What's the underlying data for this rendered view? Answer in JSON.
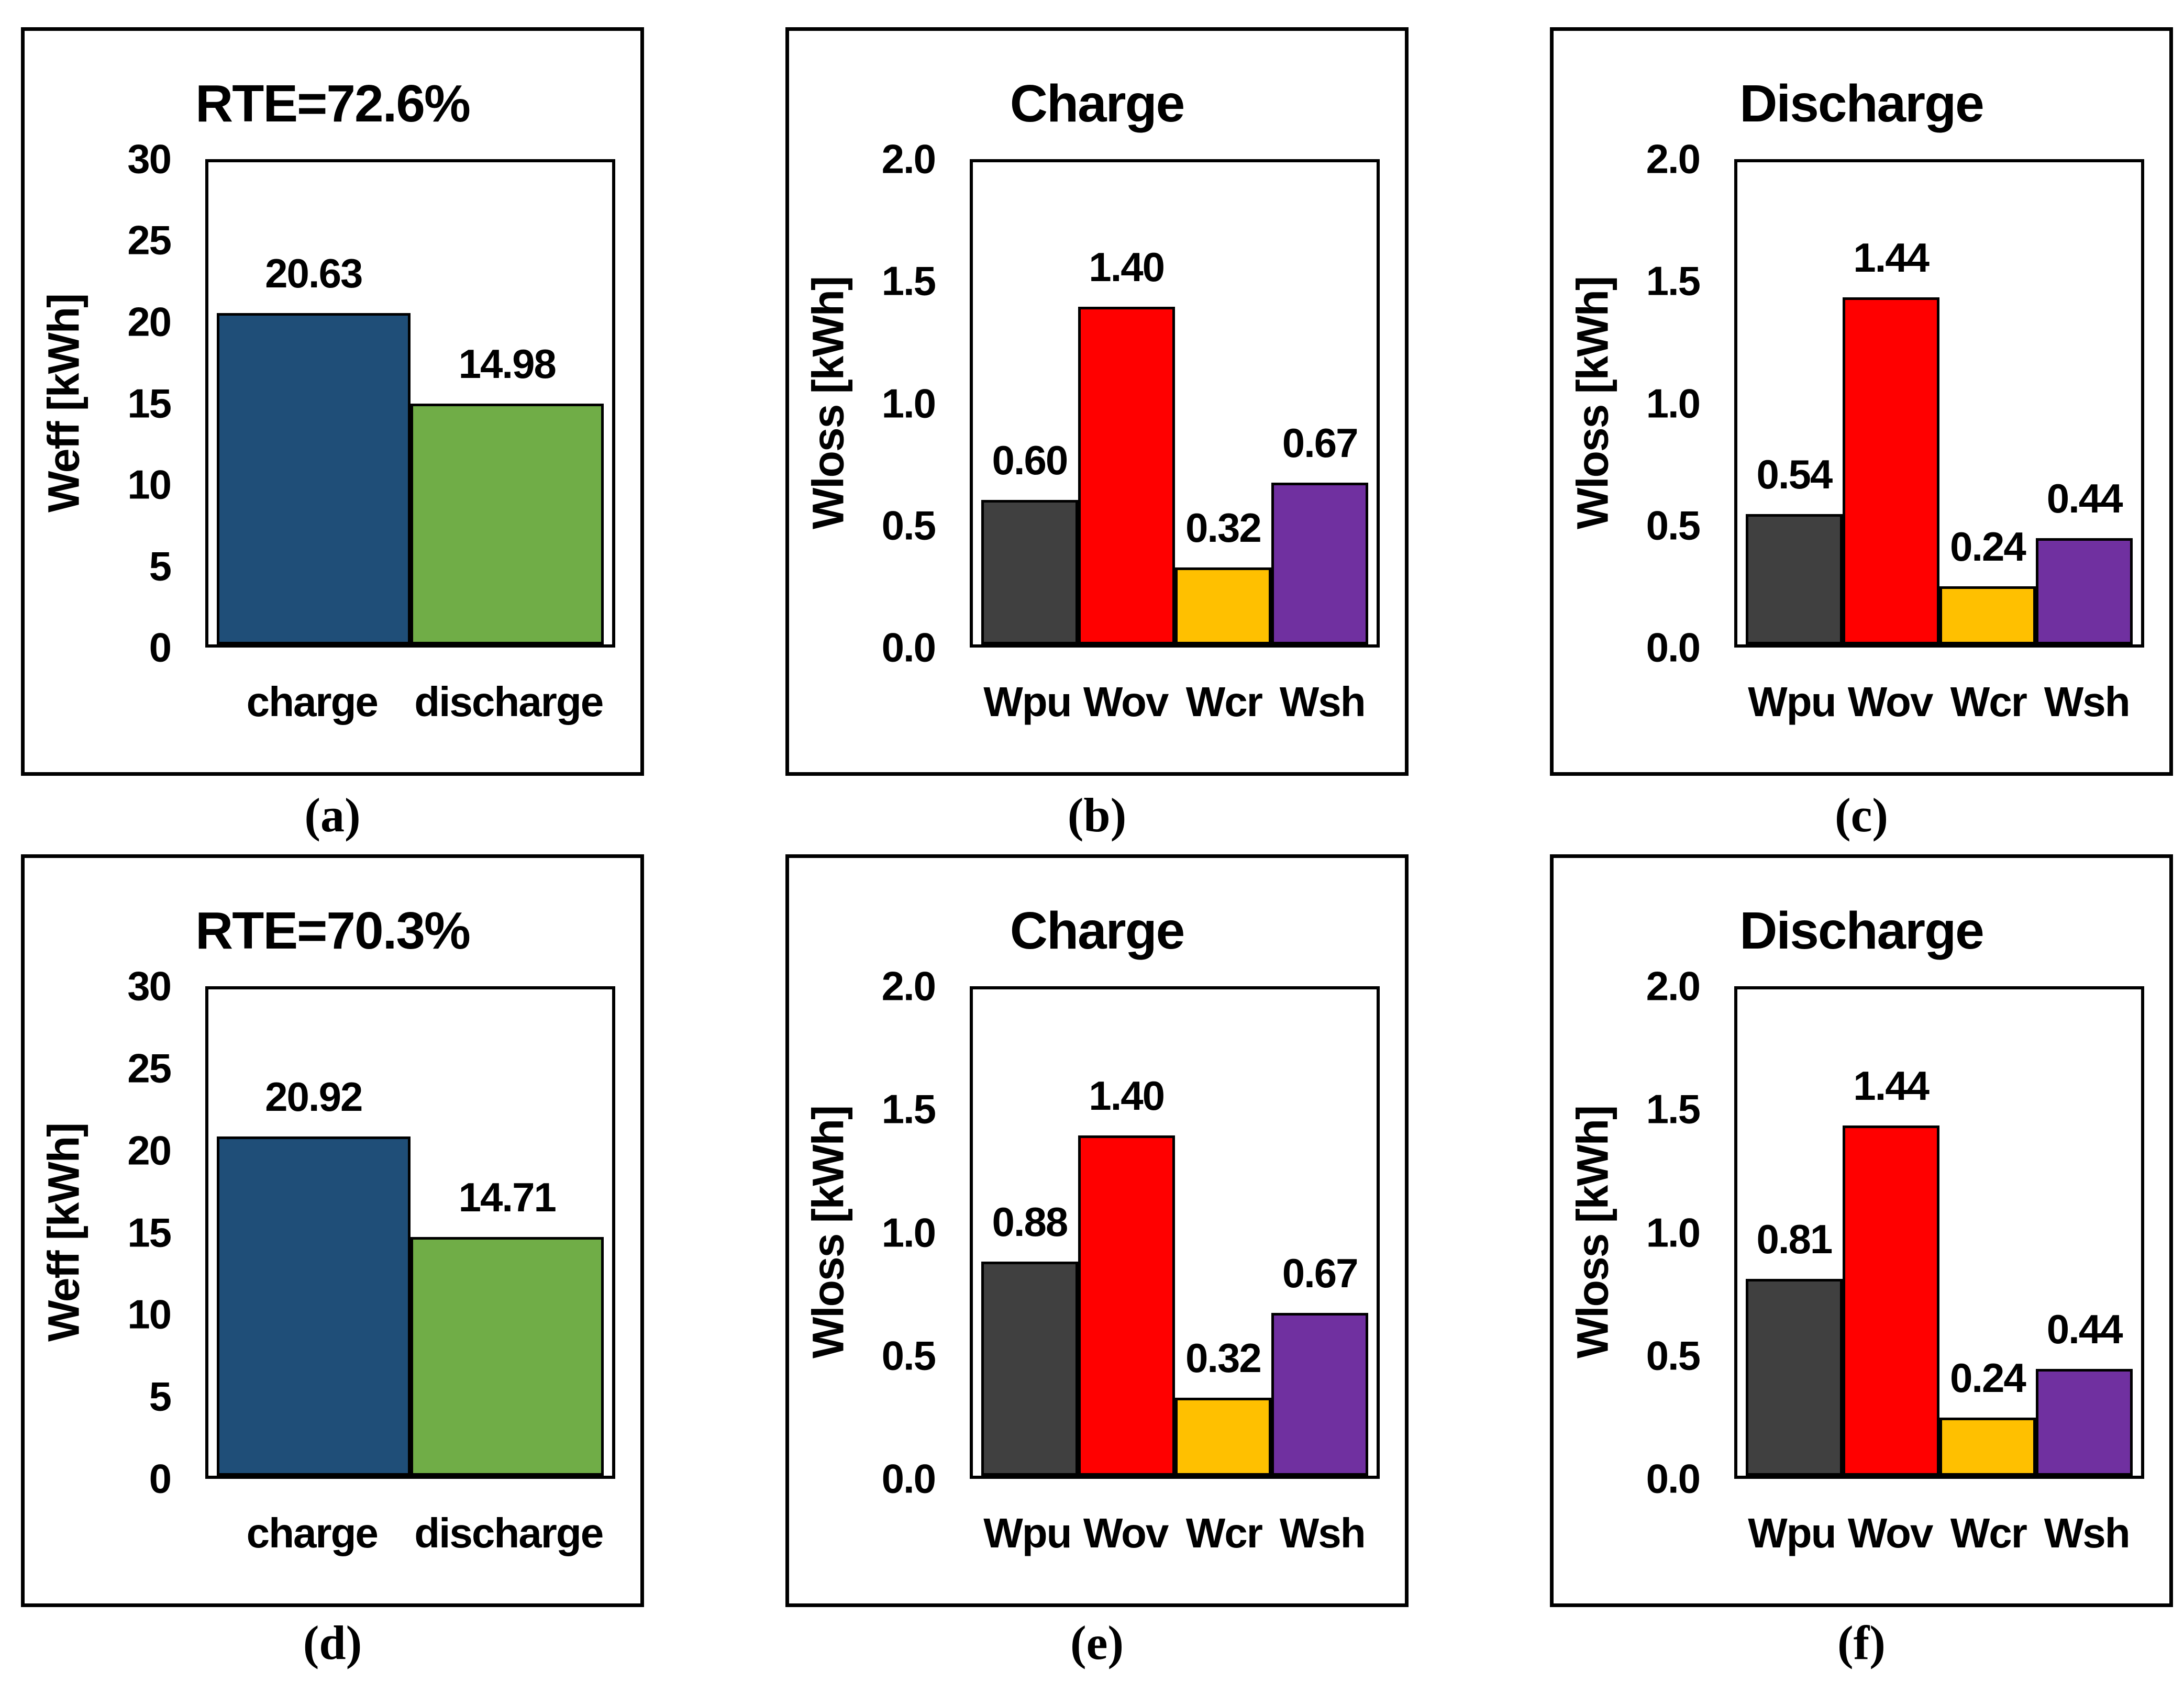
{
  "chart_data": [
    {
      "type": "bar",
      "panel": "a",
      "title": "RTE=72.6%",
      "ylabel": "Weff [kWh]",
      "ylim": [
        0,
        30
      ],
      "yticks": [
        "30",
        "25",
        "20",
        "15",
        "10",
        "5",
        "0"
      ],
      "categories": [
        "charge",
        "discharge"
      ],
      "values": [
        20.63,
        14.98
      ],
      "value_labels": [
        "20.63",
        "14.98"
      ],
      "bar_colors": [
        "#1F4E78",
        "#70AD47"
      ],
      "grid": "off",
      "legend": "none",
      "caption": "(a)"
    },
    {
      "type": "bar",
      "panel": "b",
      "title": "Charge",
      "ylabel": "Wloss [kWh]",
      "ylim": [
        0,
        2.0
      ],
      "yticks": [
        "2.0",
        "1.5",
        "1.0",
        "0.5",
        "0.0"
      ],
      "categories": [
        "Wpu",
        "Wov",
        "Wcr",
        "Wsh"
      ],
      "values": [
        0.6,
        1.4,
        0.32,
        0.67
      ],
      "value_labels": [
        "0.60",
        "1.40",
        "0.32",
        "0.67"
      ],
      "bar_colors": [
        "#404040",
        "#FF0000",
        "#FFC000",
        "#7030A0"
      ],
      "grid": "off",
      "legend": "none",
      "caption": "(b)"
    },
    {
      "type": "bar",
      "panel": "c",
      "title": "Discharge",
      "ylabel": "Wloss [kWh]",
      "ylim": [
        0,
        2.0
      ],
      "yticks": [
        "2.0",
        "1.5",
        "1.0",
        "0.5",
        "0.0"
      ],
      "categories": [
        "Wpu",
        "Wov",
        "Wcr",
        "Wsh"
      ],
      "values": [
        0.54,
        1.44,
        0.24,
        0.44
      ],
      "value_labels": [
        "0.54",
        "1.44",
        "0.24",
        "0.44"
      ],
      "bar_colors": [
        "#404040",
        "#FF0000",
        "#FFC000",
        "#7030A0"
      ],
      "grid": "off",
      "legend": "none",
      "caption": "(c)"
    },
    {
      "type": "bar",
      "panel": "d",
      "title": "RTE=70.3%",
      "ylabel": "Weff [kWh]",
      "ylim": [
        0,
        30
      ],
      "yticks": [
        "30",
        "25",
        "20",
        "15",
        "10",
        "5",
        "0"
      ],
      "categories": [
        "charge",
        "discharge"
      ],
      "values": [
        20.92,
        14.71
      ],
      "value_labels": [
        "20.92",
        "14.71"
      ],
      "bar_colors": [
        "#1F4E78",
        "#70AD47"
      ],
      "grid": "off",
      "legend": "none",
      "caption": "(d)"
    },
    {
      "type": "bar",
      "panel": "e",
      "title": "Charge",
      "ylabel": "Wloss [kWh]",
      "ylim": [
        0,
        2.0
      ],
      "yticks": [
        "2.0",
        "1.5",
        "1.0",
        "0.5",
        "0.0"
      ],
      "categories": [
        "Wpu",
        "Wov",
        "Wcr",
        "Wsh"
      ],
      "values": [
        0.88,
        1.4,
        0.32,
        0.67
      ],
      "value_labels": [
        "0.88",
        "1.40",
        "0.32",
        "0.67"
      ],
      "bar_colors": [
        "#404040",
        "#FF0000",
        "#FFC000",
        "#7030A0"
      ],
      "grid": "off",
      "legend": "none",
      "caption": "(e)"
    },
    {
      "type": "bar",
      "panel": "f",
      "title": "Discharge",
      "ylabel": "Wloss [kWh]",
      "ylim": [
        0,
        2.0
      ],
      "yticks": [
        "2.0",
        "1.5",
        "1.0",
        "0.5",
        "0.0"
      ],
      "categories": [
        "Wpu",
        "Wov",
        "Wcr",
        "Wsh"
      ],
      "values": [
        0.81,
        1.44,
        0.24,
        0.44
      ],
      "value_labels": [
        "0.81",
        "1.44",
        "0.24",
        "0.44"
      ],
      "bar_colors": [
        "#404040",
        "#FF0000",
        "#FFC000",
        "#7030A0"
      ],
      "grid": "off",
      "legend": "none",
      "caption": "(f)"
    }
  ]
}
